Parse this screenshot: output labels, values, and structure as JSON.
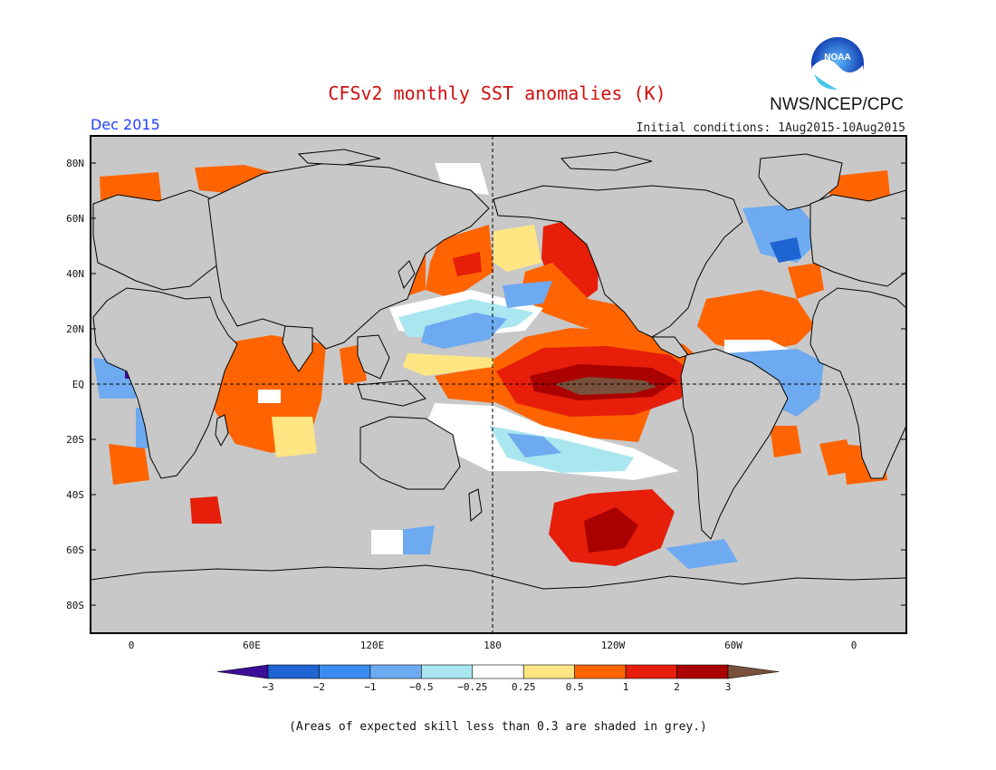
{
  "header": {
    "title": "CFSv2 monthly SST anomalies (K)",
    "agency": "NWS/NCEP/CPC",
    "logo_text": "NOAA",
    "target_month": "Dec 2015",
    "initial_conditions": "Initial conditions: 1Aug2015-10Aug2015"
  },
  "map": {
    "lat_labels": [
      "80N",
      "60N",
      "40N",
      "20N",
      "EQ",
      "20S",
      "40S",
      "60S",
      "80S"
    ],
    "lon_labels": [
      "0",
      "60E",
      "120E",
      "180",
      "120W",
      "60W",
      "0"
    ],
    "land_color": "#c8c8c8",
    "masked_color": "#c8c8c8",
    "reference_lines": [
      "EQ",
      "180"
    ]
  },
  "colorbar": {
    "tick_labels": [
      "-3",
      "-2",
      "-1",
      "-0.5",
      "-0.25",
      "0.25",
      "0.5",
      "1",
      "2",
      "3"
    ],
    "colors": [
      "#3a0e96",
      "#1e64d2",
      "#3c8cf0",
      "#6eaaf0",
      "#aae6f0",
      "#ffffff",
      "#ffe682",
      "#ff6400",
      "#e61e0a",
      "#aa0000",
      "#78503c"
    ]
  },
  "footnote": "(Areas of expected skill less than 0.3 are shaded in grey.)",
  "colors": {
    "title": "#d01010",
    "month": "#1e40ff",
    "text": "#111111"
  }
}
